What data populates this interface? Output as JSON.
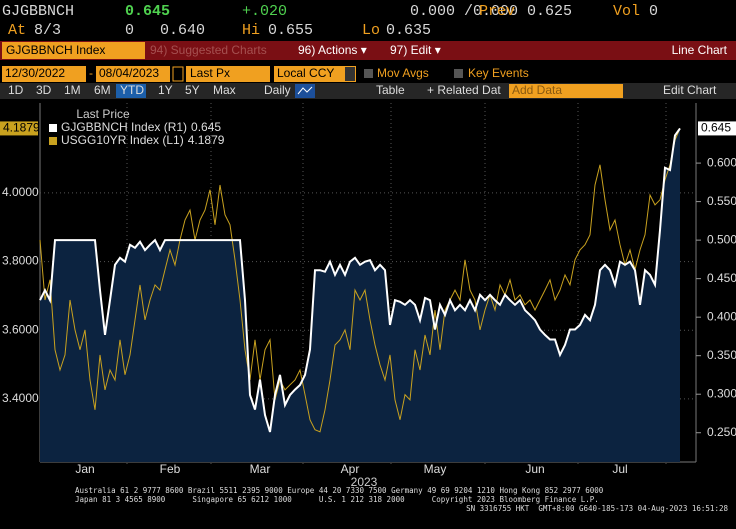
{
  "quote": {
    "ticker": "GJGBBNCH",
    "last": "0.645",
    "change": "+.020",
    "bid_ask": "0.000 /0.000",
    "prev_label": "Prev",
    "prev": "0.625",
    "vol_label": "Vol",
    "vol": "0",
    "at_label": "At",
    "at": "8/3",
    "size": "0",
    "open": "0.640",
    "hi_label": "Hi",
    "hi": "0.655",
    "lo_label": "Lo",
    "lo": "0.635"
  },
  "menu": {
    "security": "GJGBBNCH Index",
    "suggested": "94) Suggested Charts",
    "actions": "96) Actions ▾",
    "edit": "97) Edit ▾",
    "view": "Line Chart"
  },
  "controls": {
    "start": "12/30/2022",
    "dash": "-",
    "end": "08/04/2023",
    "field": "Last Px",
    "currency": "Local CCY",
    "mov_avgs": "Mov Avgs",
    "key_events": "Key Events"
  },
  "toolbar": {
    "periods": [
      "1D",
      "3D",
      "1M",
      "6M",
      "YTD",
      "1Y",
      "5Y",
      "Max"
    ],
    "frequency": "Daily",
    "table": "Table",
    "related": "+ Related Dat",
    "add_data": "Add Data",
    "edit_chart": "Edit Chart"
  },
  "chart_data": {
    "type": "line",
    "legend_title": "Last Price",
    "xlabel": "2023",
    "xlim": [
      0,
      128
    ],
    "xticks": [
      {
        "value": 9,
        "label": "Jan"
      },
      {
        "value": 26,
        "label": "Feb"
      },
      {
        "value": 44,
        "label": "Mar"
      },
      {
        "value": 62,
        "label": "Apr"
      },
      {
        "value": 79,
        "label": "May"
      },
      {
        "value": 99,
        "label": "Jun"
      },
      {
        "value": 116,
        "label": "Jul"
      }
    ],
    "xgrid": [
      17.4,
      34.2,
      52.6,
      70.2,
      89,
      107.6,
      125.2
    ],
    "ylim": [
      3.216,
      4.262
    ],
    "yticks": [
      {
        "value": 3.4,
        "label": "3.4000"
      },
      {
        "value": 3.6,
        "label": "3.6000"
      },
      {
        "value": 3.8,
        "label": "3.8000"
      },
      {
        "value": 4.0,
        "label": "4.0000"
      }
    ],
    "y2lim": [
      0.212,
      0.678
    ],
    "y2ticks": [
      {
        "value": 0.25,
        "label": "0.250"
      },
      {
        "value": 0.3,
        "label": "0.300"
      },
      {
        "value": 0.35,
        "label": "0.350"
      },
      {
        "value": 0.4,
        "label": "0.400"
      },
      {
        "value": 0.45,
        "label": "0.450"
      },
      {
        "value": 0.5,
        "label": "0.500"
      },
      {
        "value": 0.55,
        "label": "0.550"
      },
      {
        "value": 0.6,
        "label": "0.600"
      }
    ],
    "grid": true,
    "series": [
      {
        "name": "GJGBBNCH Index (R1)",
        "color": "#ffffff",
        "fill": "#0c2340",
        "axis": "y2",
        "values": [
          0.422,
          0.435,
          0.422,
          0.5,
          0.5,
          0.5,
          0.5,
          0.5,
          0.5,
          0.5,
          0.5,
          0.5,
          0.435,
          0.377,
          0.422,
          0.468,
          0.477,
          0.472,
          0.494,
          0.49,
          0.498,
          0.487,
          0.494,
          0.5,
          0.487,
          0.5,
          0.5,
          0.5,
          0.5,
          0.5,
          0.5,
          0.5,
          0.5,
          0.5,
          0.5,
          0.5,
          0.5,
          0.5,
          0.5,
          0.5,
          0.5,
          0.422,
          0.299,
          0.28,
          0.319,
          0.273,
          0.251,
          0.299,
          0.325,
          0.286,
          0.299,
          0.306,
          0.312,
          0.325,
          0.358,
          0.461,
          0.461,
          0.459,
          0.472,
          0.455,
          0.468,
          0.455,
          0.472,
          0.477,
          0.468,
          0.472,
          0.474,
          0.461,
          0.468,
          0.461,
          0.39,
          0.422,
          0.42,
          0.416,
          0.422,
          0.416,
          0.396,
          0.425,
          0.422,
          0.384,
          0.416,
          0.403,
          0.422,
          0.409,
          0.416,
          0.409,
          0.422,
          0.409,
          0.429,
          0.422,
          0.429,
          0.422,
          0.416,
          0.429,
          0.422,
          0.416,
          0.422,
          0.409,
          0.403,
          0.396,
          0.384,
          0.377,
          0.371,
          0.371,
          0.351,
          0.364,
          0.384,
          0.384,
          0.39,
          0.403,
          0.396,
          0.416,
          0.461,
          0.468,
          0.461,
          0.442,
          0.472,
          0.468,
          0.472,
          0.461,
          0.416,
          0.461,
          0.455,
          0.442,
          0.513,
          0.594,
          0.591,
          0.636,
          0.645
        ]
      },
      {
        "name": "USGG10YR Index (L1)",
        "color": "#c9a21f",
        "axis": "y",
        "values": [
          3.863,
          3.688,
          3.747,
          3.543,
          3.484,
          3.528,
          3.688,
          3.601,
          3.543,
          3.601,
          3.455,
          3.368,
          3.528,
          3.426,
          3.484,
          3.455,
          3.572,
          3.47,
          3.528,
          3.63,
          3.732,
          3.63,
          3.688,
          3.732,
          3.717,
          3.776,
          3.834,
          3.79,
          3.863,
          3.921,
          3.95,
          3.863,
          3.921,
          3.95,
          4.009,
          3.907,
          4.023,
          3.936,
          3.907,
          3.805,
          3.688,
          3.543,
          3.455,
          3.572,
          3.455,
          3.543,
          3.572,
          3.397,
          3.455,
          3.426,
          3.441,
          3.455,
          3.484,
          3.412,
          3.339,
          3.31,
          3.304,
          3.368,
          3.455,
          3.557,
          3.572,
          3.601,
          3.543,
          3.717,
          3.688,
          3.717,
          3.63,
          3.557,
          3.499,
          3.455,
          3.528,
          3.397,
          3.339,
          3.412,
          3.397,
          3.543,
          3.484,
          3.586,
          3.528,
          3.659,
          3.543,
          3.659,
          3.688,
          3.717,
          3.688,
          3.805,
          3.717,
          3.688,
          3.601,
          3.659,
          3.703,
          3.659,
          3.732,
          3.703,
          3.747,
          3.688,
          3.703,
          3.674,
          3.688,
          3.659,
          3.688,
          3.717,
          3.747,
          3.688,
          3.717,
          3.761,
          3.732,
          3.805,
          3.834,
          3.849,
          3.878,
          4.023,
          4.082,
          3.98,
          3.892,
          3.921,
          3.849,
          3.79,
          3.834,
          3.776,
          3.834,
          3.878,
          3.994,
          3.965,
          3.98,
          4.038,
          4.082,
          4.154,
          4.1879
        ]
      }
    ]
  },
  "footer": {
    "line1": "Australia 61 2 9777 8600 Brazil 5511 2395 9000 Europe 44 20 7330 7500 Germany 49 69 9204 1210 Hong Kong 852 2977 6000",
    "line2": "Japan 81 3 4565 8900      Singapore 65 6212 1000      U.S. 1 212 318 2000      Copyright 2023 Bloomberg Finance L.P.",
    "line3": "SN 3316755 HKT  GMT+8:00 G640-185-173 04-Aug-2023 16:51:28"
  }
}
